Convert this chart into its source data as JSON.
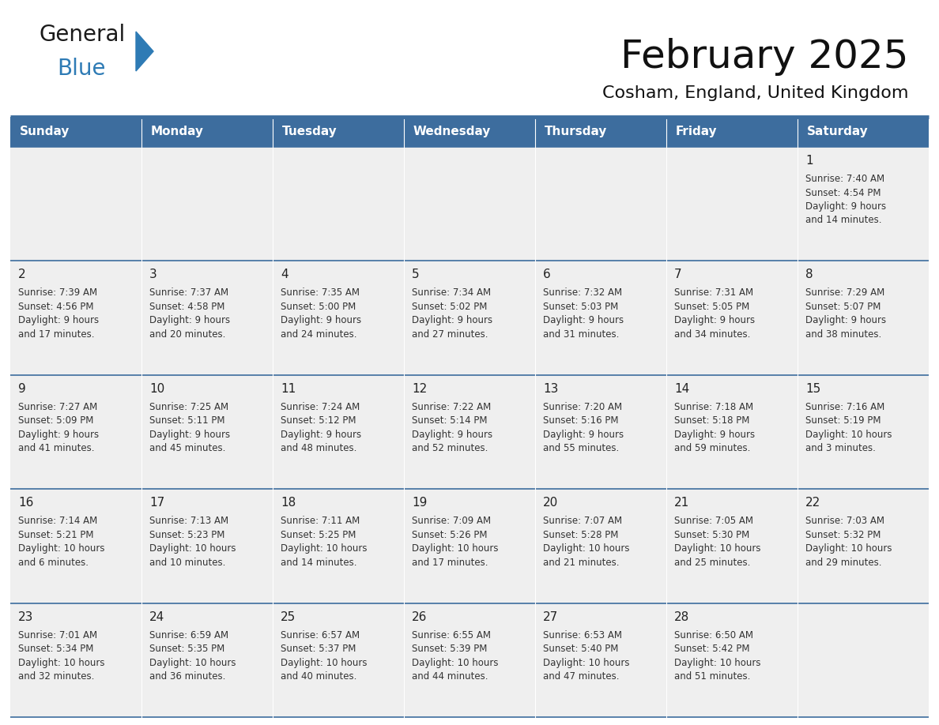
{
  "title": "February 2025",
  "subtitle": "Cosham, England, United Kingdom",
  "days_of_week": [
    "Sunday",
    "Monday",
    "Tuesday",
    "Wednesday",
    "Thursday",
    "Friday",
    "Saturday"
  ],
  "header_bg": "#3d6d9e",
  "header_text": "#ffffff",
  "cell_bg": "#efefef",
  "cell_bg_white": "#ffffff",
  "day_number_color": "#222222",
  "text_color": "#333333",
  "border_color": "#3d6d9e",
  "calendar_data": [
    [
      null,
      null,
      null,
      null,
      null,
      null,
      {
        "day": 1,
        "sunrise": "7:40 AM",
        "sunset": "4:54 PM",
        "daylight": "9 hours\nand 14 minutes."
      }
    ],
    [
      {
        "day": 2,
        "sunrise": "7:39 AM",
        "sunset": "4:56 PM",
        "daylight": "9 hours\nand 17 minutes."
      },
      {
        "day": 3,
        "sunrise": "7:37 AM",
        "sunset": "4:58 PM",
        "daylight": "9 hours\nand 20 minutes."
      },
      {
        "day": 4,
        "sunrise": "7:35 AM",
        "sunset": "5:00 PM",
        "daylight": "9 hours\nand 24 minutes."
      },
      {
        "day": 5,
        "sunrise": "7:34 AM",
        "sunset": "5:02 PM",
        "daylight": "9 hours\nand 27 minutes."
      },
      {
        "day": 6,
        "sunrise": "7:32 AM",
        "sunset": "5:03 PM",
        "daylight": "9 hours\nand 31 minutes."
      },
      {
        "day": 7,
        "sunrise": "7:31 AM",
        "sunset": "5:05 PM",
        "daylight": "9 hours\nand 34 minutes."
      },
      {
        "day": 8,
        "sunrise": "7:29 AM",
        "sunset": "5:07 PM",
        "daylight": "9 hours\nand 38 minutes."
      }
    ],
    [
      {
        "day": 9,
        "sunrise": "7:27 AM",
        "sunset": "5:09 PM",
        "daylight": "9 hours\nand 41 minutes."
      },
      {
        "day": 10,
        "sunrise": "7:25 AM",
        "sunset": "5:11 PM",
        "daylight": "9 hours\nand 45 minutes."
      },
      {
        "day": 11,
        "sunrise": "7:24 AM",
        "sunset": "5:12 PM",
        "daylight": "9 hours\nand 48 minutes."
      },
      {
        "day": 12,
        "sunrise": "7:22 AM",
        "sunset": "5:14 PM",
        "daylight": "9 hours\nand 52 minutes."
      },
      {
        "day": 13,
        "sunrise": "7:20 AM",
        "sunset": "5:16 PM",
        "daylight": "9 hours\nand 55 minutes."
      },
      {
        "day": 14,
        "sunrise": "7:18 AM",
        "sunset": "5:18 PM",
        "daylight": "9 hours\nand 59 minutes."
      },
      {
        "day": 15,
        "sunrise": "7:16 AM",
        "sunset": "5:19 PM",
        "daylight": "10 hours\nand 3 minutes."
      }
    ],
    [
      {
        "day": 16,
        "sunrise": "7:14 AM",
        "sunset": "5:21 PM",
        "daylight": "10 hours\nand 6 minutes."
      },
      {
        "day": 17,
        "sunrise": "7:13 AM",
        "sunset": "5:23 PM",
        "daylight": "10 hours\nand 10 minutes."
      },
      {
        "day": 18,
        "sunrise": "7:11 AM",
        "sunset": "5:25 PM",
        "daylight": "10 hours\nand 14 minutes."
      },
      {
        "day": 19,
        "sunrise": "7:09 AM",
        "sunset": "5:26 PM",
        "daylight": "10 hours\nand 17 minutes."
      },
      {
        "day": 20,
        "sunrise": "7:07 AM",
        "sunset": "5:28 PM",
        "daylight": "10 hours\nand 21 minutes."
      },
      {
        "day": 21,
        "sunrise": "7:05 AM",
        "sunset": "5:30 PM",
        "daylight": "10 hours\nand 25 minutes."
      },
      {
        "day": 22,
        "sunrise": "7:03 AM",
        "sunset": "5:32 PM",
        "daylight": "10 hours\nand 29 minutes."
      }
    ],
    [
      {
        "day": 23,
        "sunrise": "7:01 AM",
        "sunset": "5:34 PM",
        "daylight": "10 hours\nand 32 minutes."
      },
      {
        "day": 24,
        "sunrise": "6:59 AM",
        "sunset": "5:35 PM",
        "daylight": "10 hours\nand 36 minutes."
      },
      {
        "day": 25,
        "sunrise": "6:57 AM",
        "sunset": "5:37 PM",
        "daylight": "10 hours\nand 40 minutes."
      },
      {
        "day": 26,
        "sunrise": "6:55 AM",
        "sunset": "5:39 PM",
        "daylight": "10 hours\nand 44 minutes."
      },
      {
        "day": 27,
        "sunrise": "6:53 AM",
        "sunset": "5:40 PM",
        "daylight": "10 hours\nand 47 minutes."
      },
      {
        "day": 28,
        "sunrise": "6:50 AM",
        "sunset": "5:42 PM",
        "daylight": "10 hours\nand 51 minutes."
      },
      null
    ]
  ],
  "logo_text1": "General",
  "logo_text2": "Blue",
  "logo_text1_color": "#1a1a1a",
  "logo_text2_color": "#2e7bb5",
  "logo_triangle_color": "#2e7bb5",
  "title_fontsize": 36,
  "subtitle_fontsize": 16,
  "header_fontsize": 11,
  "day_num_fontsize": 11,
  "cell_fontsize": 8.5
}
